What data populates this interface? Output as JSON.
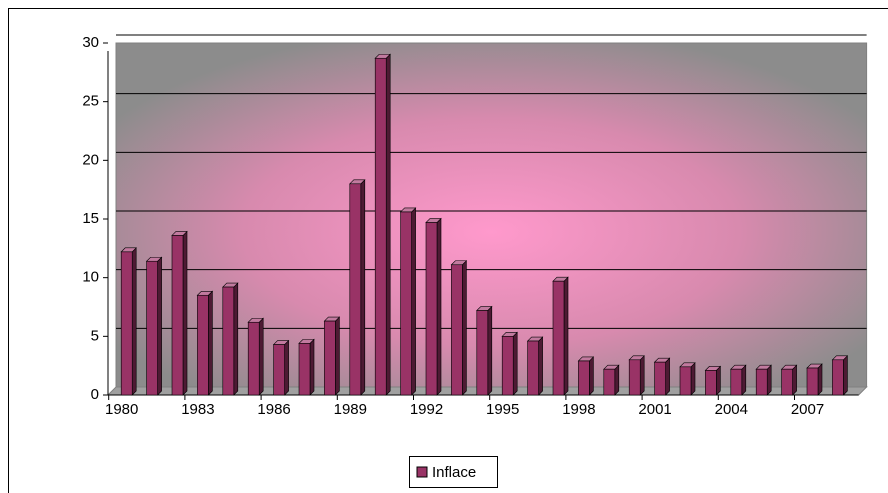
{
  "chart_data": {
    "type": "bar",
    "categories": [
      "1980",
      null,
      null,
      "1983",
      null,
      null,
      "1986",
      null,
      null,
      "1989",
      null,
      null,
      "1992",
      null,
      null,
      "1995",
      null,
      null,
      "1998",
      null,
      null,
      "2001",
      null,
      null,
      "2004",
      null,
      null,
      "2007",
      null
    ],
    "series": [
      {
        "name": "Inflace",
        "color": "#993366",
        "values": [
          12.2,
          11.4,
          13.6,
          8.5,
          9.2,
          6.2,
          4.3,
          4.4,
          6.3,
          18.0,
          28.7,
          15.6,
          14.7,
          11.1,
          7.2,
          5.0,
          4.6,
          9.7,
          2.9,
          2.2,
          3.0,
          2.8,
          2.4,
          2.1,
          2.2,
          2.2,
          2.2,
          2.3,
          3.0
        ]
      }
    ],
    "ylim": [
      0,
      30
    ],
    "yticks": [
      0,
      5,
      10,
      15,
      20,
      25,
      30
    ],
    "grid": true,
    "legend": "bottom"
  }
}
